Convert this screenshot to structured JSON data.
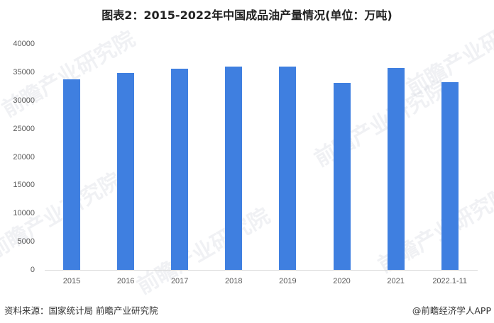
{
  "title": "图表2：2015-2022年中国成品油产量情况(单位：万吨)",
  "footer": {
    "source": "资料来源：国家统计局 前瞻产业研究院",
    "credit": "@前瞻经济学人APP"
  },
  "watermark": "前瞻产业研究院",
  "colors": {
    "bar": "#3f7fe0",
    "axis": "#d9d9d9",
    "text": "#595959"
  },
  "chart_data": {
    "type": "bar",
    "title": "图表2：2015-2022年中国成品油产量情况(单位：万吨)",
    "xlabel": "",
    "ylabel": "",
    "unit": "万吨",
    "categories": [
      "2015",
      "2016",
      "2017",
      "2018",
      "2019",
      "2020",
      "2021",
      "2022.1-11"
    ],
    "values": [
      33700,
      34800,
      35600,
      36000,
      36000,
      33100,
      35700,
      33200
    ],
    "ylim": [
      0,
      40000
    ],
    "yticks": [
      "0",
      "5000",
      "10000",
      "15000",
      "20000",
      "25000",
      "30000",
      "35000",
      "40000"
    ],
    "grid": false,
    "legend": "none"
  }
}
